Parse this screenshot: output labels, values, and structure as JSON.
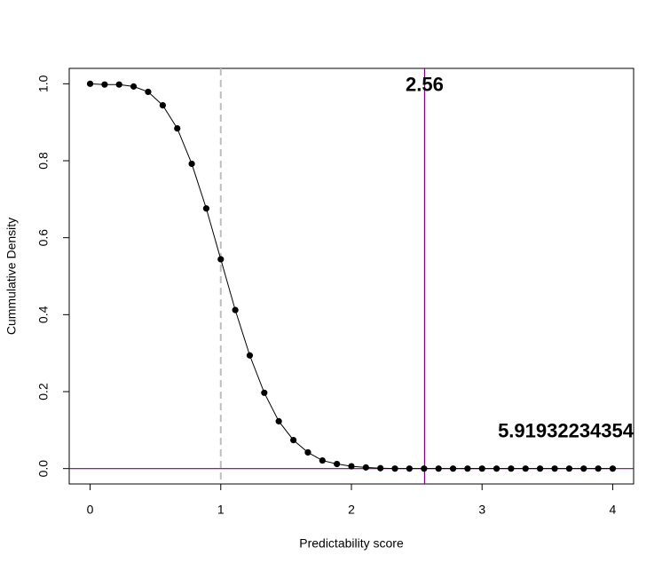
{
  "chart_data": {
    "type": "line",
    "x_label": "Predictability score",
    "y_label": "Cummulative Density",
    "x": [
      0,
      0.111,
      0.222,
      0.333,
      0.444,
      0.556,
      0.667,
      0.778,
      0.889,
      1,
      1.111,
      1.222,
      1.333,
      1.444,
      1.556,
      1.667,
      1.778,
      1.889,
      2,
      2.111,
      2.222,
      2.333,
      2.444,
      2.556,
      2.667,
      2.778,
      2.889,
      3,
      3.111,
      3.222,
      3.333,
      3.444,
      3.556,
      3.667,
      3.778,
      3.889,
      4
    ],
    "series": [
      {
        "color": "#000000",
        "values": [
          1.0,
          0.998,
          0.998,
          0.993,
          0.979,
          0.944,
          0.884,
          0.792,
          0.676,
          0.544,
          0.412,
          0.294,
          0.197,
          0.123,
          0.074,
          0.042,
          0.021,
          0.012,
          0.006,
          0.003,
          0.001,
          0,
          0,
          0,
          0,
          0,
          0,
          0,
          0,
          0,
          0,
          0,
          0,
          0,
          0,
          0,
          0
        ]
      }
    ],
    "xlim": [
      -0.16,
      4.16
    ],
    "ylim": [
      -0.04,
      1.04
    ],
    "xticks": [
      0,
      1,
      2,
      3,
      4
    ],
    "yticks": [
      {
        "value": 0,
        "label": "0.0"
      },
      {
        "value": 0.2,
        "label": "0.2"
      },
      {
        "value": 0.4,
        "label": "0.4"
      },
      {
        "value": 0.6,
        "label": "0.6"
      },
      {
        "value": 0.8,
        "label": "0.8"
      },
      {
        "value": 1,
        "label": "1.0"
      }
    ],
    "ref_vline": {
      "value": 1,
      "color": "#bebebe"
    },
    "marker_vline": {
      "value": 2.56,
      "label": "2.56",
      "color": "#800080"
    },
    "hline": {
      "value": 0,
      "color": "#800080"
    },
    "annotation": "5.91932234354"
  }
}
